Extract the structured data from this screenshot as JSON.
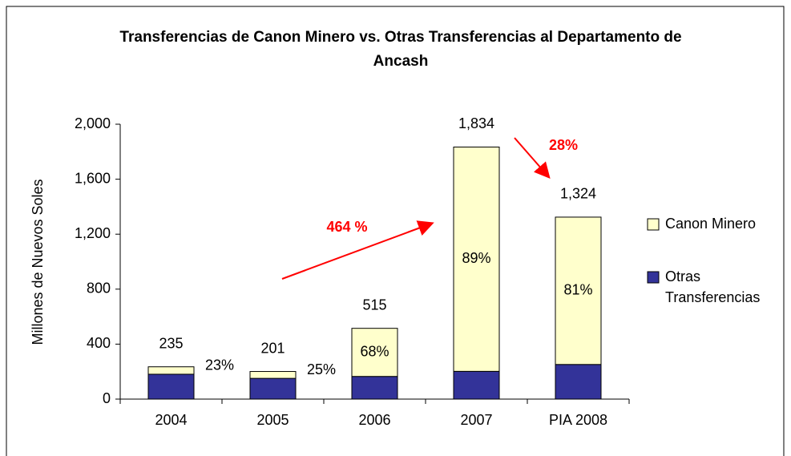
{
  "chart_data": {
    "type": "stacked_bar",
    "title": "Transferencias de Canon Minero vs. Otras Transferencias al Departamento de Ancash",
    "y_label": "Millones de Nuevos Soles",
    "categories": [
      "2004",
      "2005",
      "2006",
      "2007",
      "PIA 2008"
    ],
    "series": [
      {
        "name": "Otras Transferencias",
        "color": "#333399",
        "values": [
          181,
          151,
          165,
          202,
          252
        ]
      },
      {
        "name": "Canon Minero",
        "color": "#ffffcc",
        "values": [
          54,
          50,
          350,
          1632,
          1072
        ]
      }
    ],
    "totals": [
      235,
      201,
      515,
      1834,
      1324
    ],
    "total_labels": [
      "235",
      "201",
      "515",
      "1,834",
      "1,324"
    ],
    "canon_shares": [
      23,
      25,
      68,
      89,
      81
    ],
    "canon_share_labels": [
      "23%",
      "25%",
      "68%",
      "89%",
      "81%"
    ],
    "annotations": [
      "464 %",
      "28%"
    ],
    "ylim": [
      0,
      2000
    ],
    "yticks": [
      0,
      400,
      800,
      {
        "value": 1200,
        "label": "1,200"
      },
      {
        "value": 1600,
        "label": "1,600"
      },
      {
        "value": 2000,
        "label": "2,000"
      }
    ],
    "legend": "right"
  }
}
